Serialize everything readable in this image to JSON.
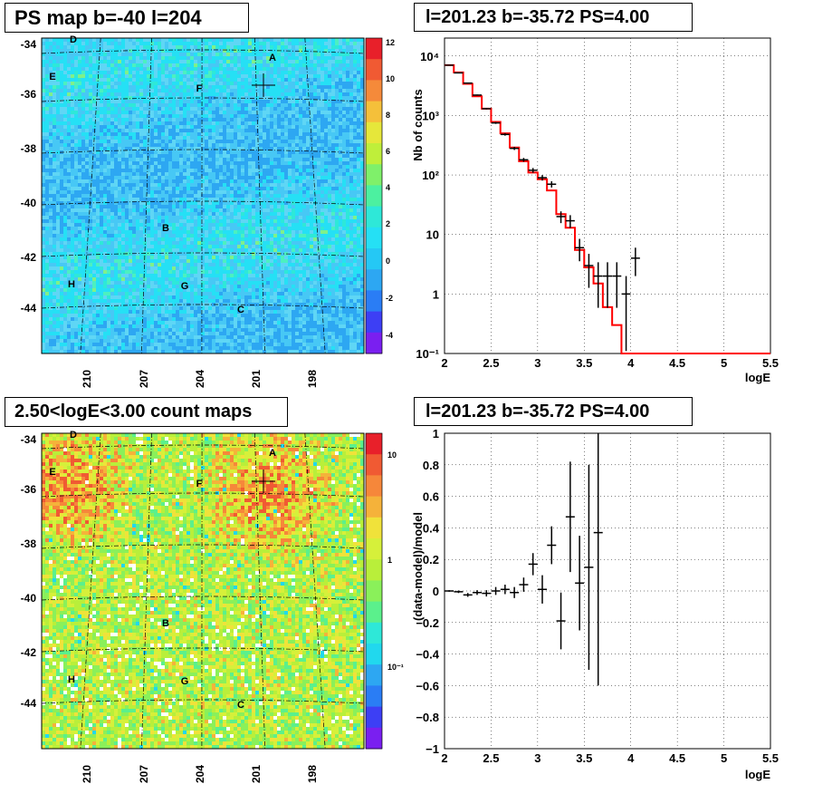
{
  "panels": {
    "ps_map": {
      "title": "PS map b=-40 l=204",
      "y_ticks": [
        "-34",
        "-36",
        "-38",
        "-40",
        "-42",
        "-44"
      ],
      "x_ticks": [
        "210",
        "207",
        "204",
        "201",
        "198"
      ],
      "colorbar_ticks": [
        "12",
        "10",
        "8",
        "6",
        "4",
        "2",
        "0",
        "-2",
        "-4"
      ],
      "sources": [
        "A",
        "B",
        "C",
        "D",
        "E",
        "F",
        "G",
        "H"
      ],
      "colors": {
        "low": "#8ecff5",
        "mid": "#25e0f5",
        "high": "#bfef3a"
      }
    },
    "count_map": {
      "title": "2.50<logE<3.00 count maps",
      "y_ticks": [
        "-34",
        "-36",
        "-38",
        "-40",
        "-42",
        "-44"
      ],
      "x_ticks": [
        "210",
        "207",
        "204",
        "201",
        "198"
      ],
      "colorbar_ticks": [
        "10",
        "1",
        "10⁻¹"
      ],
      "sources": [
        "A",
        "B",
        "C",
        "D",
        "E",
        "F",
        "G",
        "H"
      ]
    },
    "spectrum": {
      "title": "l=201.23 b=-35.72 PS=4.00",
      "y_ticks": [
        "10⁴",
        "10³",
        "10²",
        "10",
        "1",
        "10⁻¹"
      ],
      "x_ticks": [
        "2",
        "2.5",
        "3",
        "3.5",
        "4",
        "4.5",
        "5",
        "5.5"
      ],
      "ylabel": "Nb of counts",
      "xlabel": "logE"
    },
    "residual": {
      "title": "l=201.23 b=-35.72 PS=4.00",
      "y_ticks": [
        "1",
        "0.8",
        "0.6",
        "0.4",
        "0.2",
        "0",
        "−0.2",
        "−0.4",
        "−0.6",
        "−0.8",
        "−1"
      ],
      "x_ticks": [
        "2",
        "2.5",
        "3",
        "3.5",
        "4",
        "4.5",
        "5",
        "5.5"
      ],
      "ylabel": "(data-model)/model",
      "xlabel": "logE"
    }
  },
  "chart_data": [
    {
      "type": "line",
      "title": "l=201.23 b=-35.72 PS=4.00",
      "xlabel": "logE",
      "ylabel": "Nb of counts",
      "xlim": [
        2,
        5.5
      ],
      "ylim": [
        0.1,
        20000
      ],
      "yscale": "log",
      "grid": true,
      "series": [
        {
          "kind": "data_points",
          "x": [
            2.05,
            2.15,
            2.25,
            2.35,
            2.45,
            2.55,
            2.65,
            2.75,
            2.85,
            2.95,
            3.05,
            3.15,
            3.25,
            3.35,
            3.45,
            3.55,
            3.65,
            3.75,
            3.85,
            3.95,
            4.05
          ],
          "y": [
            7000,
            5200,
            3500,
            2200,
            1300,
            750,
            480,
            280,
            180,
            120,
            90,
            70,
            20,
            17,
            6,
            3,
            2,
            2,
            2,
            1,
            4
          ]
        },
        {
          "kind": "model_histogram",
          "color": "#ff0000",
          "x": [
            2.05,
            2.15,
            2.25,
            2.35,
            2.45,
            2.55,
            2.65,
            2.75,
            2.85,
            2.95,
            3.05,
            3.15,
            3.25,
            3.35,
            3.45,
            3.55,
            3.65,
            3.75,
            3.85,
            3.95,
            4.05,
            4.5,
            5,
            5.5
          ],
          "y": [
            7000,
            5300,
            3400,
            2100,
            1300,
            780,
            500,
            290,
            170,
            110,
            85,
            55,
            22,
            13,
            5.5,
            2.8,
            1.5,
            0.6,
            0.3,
            0.1,
            0.1,
            0.1,
            0.1,
            0.1
          ]
        }
      ]
    },
    {
      "type": "scatter",
      "title": "l=201.23 b=-35.72 PS=4.00",
      "xlabel": "logE",
      "ylabel": "(data-model)/model",
      "xlim": [
        2,
        5.5
      ],
      "ylim": [
        -1,
        1
      ],
      "grid": true,
      "series": [
        {
          "kind": "residuals",
          "x": [
            2.05,
            2.15,
            2.25,
            2.35,
            2.45,
            2.55,
            2.65,
            2.75,
            2.85,
            2.95,
            3.05,
            3.15,
            3.25,
            3.35,
            3.45,
            3.55,
            3.65
          ],
          "y": [
            0.0,
            -0.005,
            -0.025,
            -0.01,
            -0.015,
            0.0,
            0.01,
            -0.01,
            0.04,
            0.17,
            0.01,
            0.29,
            -0.19,
            0.47,
            0.05,
            0.15,
            0.37
          ],
          "err": [
            0.005,
            0.008,
            0.012,
            0.015,
            0.02,
            0.025,
            0.03,
            0.035,
            0.045,
            0.07,
            0.09,
            0.12,
            0.18,
            0.35,
            0.3,
            0.65,
            0.97
          ]
        }
      ]
    }
  ]
}
